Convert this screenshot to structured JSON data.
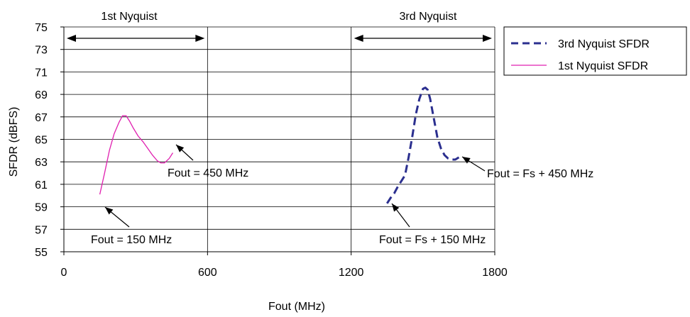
{
  "chart_data": {
    "type": "line",
    "title": "",
    "xlabel": "Fout (MHz)",
    "ylabel": "SFDR (dBFS)",
    "xlim": [
      0,
      1800
    ],
    "ylim": [
      55,
      75
    ],
    "xticks": [
      0,
      600,
      1200,
      1800
    ],
    "yticks": [
      55,
      57,
      59,
      61,
      63,
      65,
      67,
      69,
      71,
      73,
      75
    ],
    "grid": "horizontal and vertical at x ticks",
    "legend_position": "top-right outside plot",
    "series": [
      {
        "name": "3rd Nyquist SFDR",
        "color": "#2b2f8f",
        "style": "dashed",
        "x": [
          1350,
          1365,
          1380,
          1395,
          1410,
          1425,
          1440,
          1455,
          1470,
          1485,
          1500,
          1510,
          1520,
          1530,
          1545,
          1560,
          1575,
          1590,
          1605,
          1620,
          1635,
          1650
        ],
        "y": [
          59.3,
          59.8,
          60.2,
          60.8,
          61.3,
          61.8,
          63.4,
          65.2,
          67.2,
          68.6,
          69.5,
          69.6,
          69.4,
          68.6,
          66.9,
          65.2,
          64.2,
          63.6,
          63.3,
          63.2,
          63.2,
          63.4
        ]
      },
      {
        "name": "1st Nyquist SFDR",
        "color": "#e020b0",
        "style": "solid",
        "x": [
          150,
          170,
          190,
          210,
          230,
          245,
          260,
          275,
          290,
          310,
          330,
          350,
          370,
          390,
          405,
          420,
          440,
          455
        ],
        "y": [
          60.1,
          62.0,
          64.0,
          65.5,
          66.5,
          67.1,
          67.1,
          66.6,
          66.0,
          65.3,
          64.8,
          64.2,
          63.6,
          63.1,
          62.9,
          62.9,
          63.3,
          63.8
        ]
      }
    ],
    "region_labels": [
      {
        "text": "1st Nyquist",
        "x_from": 0,
        "x_to": 600
      },
      {
        "text": "3rd Nyquist",
        "x_from": 1200,
        "x_to": 1800
      }
    ],
    "annotations": [
      {
        "text": "Fout = 150 MHz",
        "x": 170,
        "y": 59.5
      },
      {
        "text": "Fout = 450 MHz",
        "x": 455,
        "y": 64.4
      },
      {
        "text": "Fout = Fs + 150 MHz",
        "x": 1380,
        "y": 59.2
      },
      {
        "text": "Fout = Fs + 450 MHz",
        "x": 1650,
        "y": 63.3
      }
    ]
  }
}
